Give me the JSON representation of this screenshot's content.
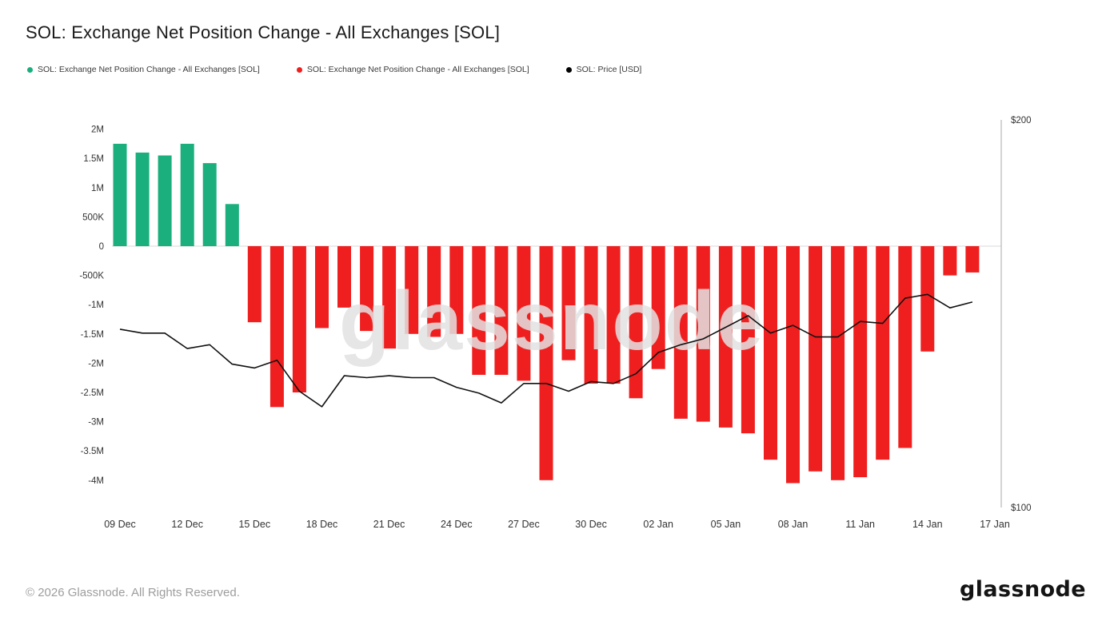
{
  "header": {
    "title": "SOL: Exchange Net Position Change - All Exchanges [SOL]"
  },
  "legend": {
    "items": [
      {
        "label": "SOL: Exchange Net Position Change - All Exchanges [SOL]",
        "color": "#1aaf7d"
      },
      {
        "label": "SOL: Exchange Net Position Change - All Exchanges [SOL]",
        "color": "#ef1f1f"
      },
      {
        "label": "SOL: Price [USD]",
        "color": "#000000"
      }
    ]
  },
  "chart_data": {
    "type": "bar",
    "title": "SOL: Exchange Net Position Change - All Exchanges [SOL]",
    "grid": "off",
    "legend_position": "top",
    "watermark": "glassnode",
    "categories": [
      "09 Dec",
      "10 Dec",
      "11 Dec",
      "12 Dec",
      "13 Dec",
      "14 Dec",
      "15 Dec",
      "16 Dec",
      "17 Dec",
      "18 Dec",
      "19 Dec",
      "20 Dec",
      "21 Dec",
      "22 Dec",
      "23 Dec",
      "24 Dec",
      "25 Dec",
      "26 Dec",
      "27 Dec",
      "28 Dec",
      "29 Dec",
      "30 Dec",
      "31 Dec",
      "01 Jan",
      "02 Jan",
      "03 Jan",
      "04 Jan",
      "05 Jan",
      "06 Jan",
      "07 Jan",
      "08 Jan",
      "09 Jan",
      "10 Jan",
      "11 Jan",
      "12 Jan",
      "13 Jan",
      "14 Jan",
      "15 Jan",
      "16 Jan"
    ],
    "series": [
      {
        "name": "SOL: Exchange Net Position Change - All Exchanges [SOL]",
        "type": "bar",
        "unit": "SOL (millions)",
        "positive_color": "#1aaf7d",
        "negative_color": "#ef1f1f",
        "values": [
          1.75,
          1.6,
          1.55,
          1.75,
          1.42,
          0.72,
          -1.3,
          -2.75,
          -2.5,
          -1.4,
          -1.05,
          -1.45,
          -1.75,
          -1.5,
          -1.55,
          -1.5,
          -2.2,
          -2.2,
          -2.3,
          -4.0,
          -1.95,
          -2.35,
          -2.35,
          -2.6,
          -2.1,
          -2.95,
          -3.0,
          -3.1,
          -3.2,
          -3.65,
          -4.05,
          -3.85,
          -4.0,
          -3.95,
          -3.65,
          -3.45,
          -1.8,
          -0.5,
          -0.45
        ]
      },
      {
        "name": "SOL: Price [USD]",
        "type": "line",
        "unit": "USD",
        "color": "#111111",
        "values": [
          146,
          145,
          145,
          141,
          142,
          137,
          136,
          138,
          130,
          126,
          134,
          133.5,
          134,
          133.5,
          133.5,
          131,
          129.5,
          127,
          132,
          132,
          130,
          132.5,
          132,
          134.5,
          140,
          142,
          143.5,
          146.5,
          149.5,
          145,
          147,
          144,
          144,
          148,
          147.5,
          154,
          155,
          151.5,
          153
        ]
      }
    ],
    "left_axis": {
      "tick_labels": [
        "2M",
        "1.5M",
        "1M",
        "500K",
        "0",
        "-500K",
        "-1M",
        "-1.5M",
        "-2M",
        "-2.5M",
        "-3M",
        "-3.5M",
        "-4M"
      ],
      "tick_values": [
        2,
        1.5,
        1,
        0.5,
        0,
        -0.5,
        -1,
        -1.5,
        -2,
        -2.5,
        -3,
        -3.5,
        -4
      ],
      "range": [
        -4.4,
        2.2
      ]
    },
    "right_axis": {
      "tick_labels": [
        "$200",
        "$100"
      ],
      "tick_values": [
        200,
        100
      ],
      "range": [
        100,
        200
      ]
    },
    "x_ticks": {
      "labels": [
        "09 Dec",
        "12 Dec",
        "15 Dec",
        "18 Dec",
        "21 Dec",
        "24 Dec",
        "27 Dec",
        "30 Dec",
        "02 Jan",
        "05 Jan",
        "08 Jan",
        "11 Jan",
        "14 Jan",
        "17 Jan"
      ],
      "indices": [
        0,
        3,
        6,
        9,
        12,
        15,
        18,
        21,
        24,
        27,
        30,
        33,
        36,
        39
      ]
    }
  },
  "footer": {
    "copyright": "© 2026 Glassnode. All Rights Reserved.",
    "brand": "glassnode"
  }
}
